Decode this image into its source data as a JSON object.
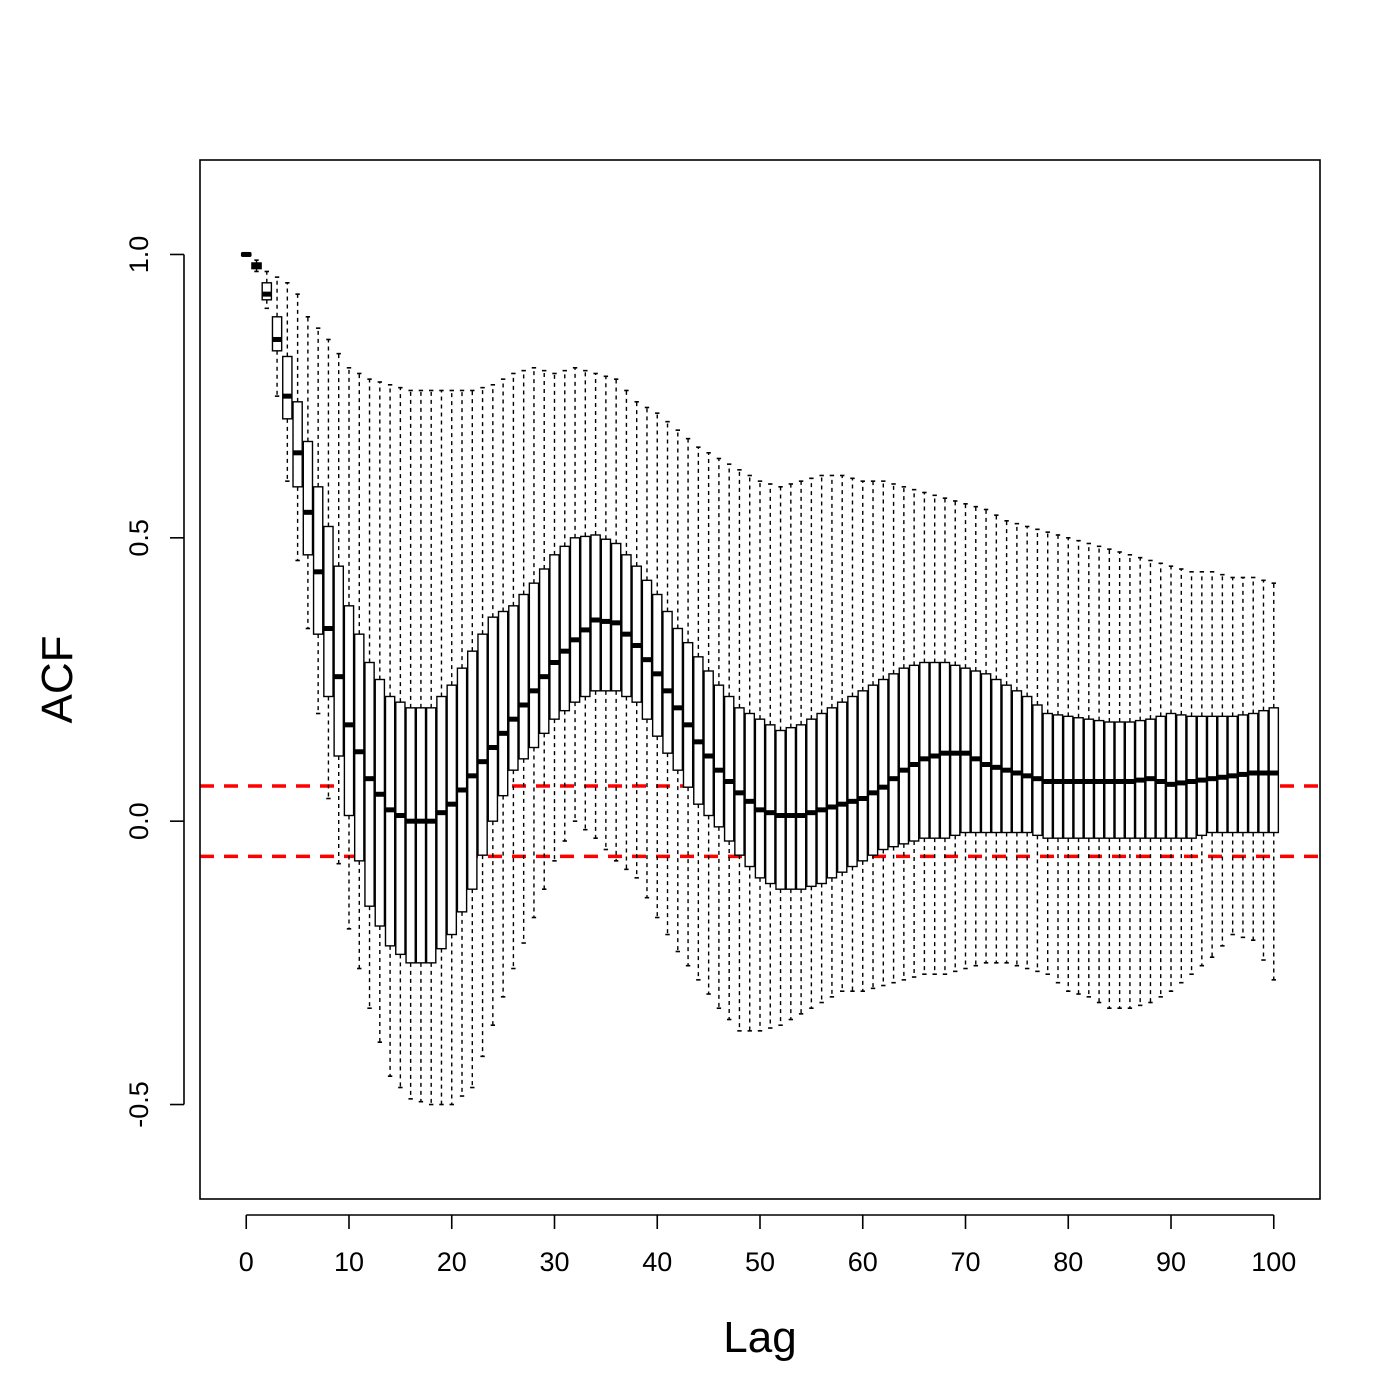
{
  "chart_data": {
    "type": "box",
    "xlabel": "Lag",
    "ylabel": "ACF",
    "xlim": [
      -4.5,
      104.5
    ],
    "ylim": [
      -0.6667,
      1.1667
    ],
    "x_ticks": [
      0,
      10,
      20,
      30,
      40,
      50,
      60,
      70,
      80,
      90,
      100
    ],
    "x_tick_labels": [
      "0",
      "10",
      "20",
      "30",
      "40",
      "50",
      "60",
      "70",
      "80",
      "90",
      "100"
    ],
    "y_ticks": [
      -0.5,
      0.0,
      0.5,
      1.0
    ],
    "y_tick_labels": [
      "-0.5",
      "0.0",
      "0.5",
      "1.0"
    ],
    "confidence_bounds": [
      0.062,
      -0.062
    ],
    "confidence_color": "#ff0000",
    "knots": {
      "lag": [
        0,
        1,
        2,
        3,
        4,
        5,
        6,
        7,
        8,
        10,
        12,
        14,
        16,
        18,
        20,
        22,
        24,
        26,
        28,
        30,
        32,
        34,
        36,
        38,
        40,
        42,
        44,
        46,
        48,
        50,
        52,
        54,
        56,
        58,
        60,
        62,
        64,
        66,
        68,
        70,
        72,
        74,
        76,
        78,
        80,
        82,
        84,
        86,
        88,
        90,
        92,
        94,
        96,
        98,
        100
      ],
      "whisker_low": [
        1.0,
        0.97,
        0.905,
        0.75,
        0.6,
        0.46,
        0.34,
        0.19,
        0.04,
        -0.19,
        -0.33,
        -0.45,
        -0.49,
        -0.5,
        -0.5,
        -0.47,
        -0.36,
        -0.26,
        -0.17,
        -0.07,
        0.0,
        -0.03,
        -0.07,
        -0.1,
        -0.17,
        -0.23,
        -0.28,
        -0.33,
        -0.37,
        -0.37,
        -0.36,
        -0.34,
        -0.32,
        -0.3,
        -0.3,
        -0.29,
        -0.28,
        -0.27,
        -0.27,
        -0.26,
        -0.25,
        -0.25,
        -0.26,
        -0.27,
        -0.3,
        -0.31,
        -0.33,
        -0.33,
        -0.32,
        -0.3,
        -0.27,
        -0.24,
        -0.2,
        -0.21,
        -0.28
      ],
      "q1": [
        0.998,
        0.975,
        0.92,
        0.83,
        0.71,
        0.59,
        0.47,
        0.33,
        0.22,
        0.01,
        -0.15,
        -0.22,
        -0.25,
        -0.25,
        -0.2,
        -0.12,
        0.0,
        0.09,
        0.13,
        0.18,
        0.21,
        0.23,
        0.23,
        0.21,
        0.15,
        0.09,
        0.03,
        -0.01,
        -0.06,
        -0.1,
        -0.12,
        -0.12,
        -0.11,
        -0.09,
        -0.07,
        -0.05,
        -0.04,
        -0.03,
        -0.03,
        -0.02,
        -0.02,
        -0.02,
        -0.02,
        -0.03,
        -0.03,
        -0.03,
        -0.03,
        -0.03,
        -0.03,
        -0.03,
        -0.03,
        -0.02,
        -0.02,
        -0.02,
        -0.02
      ],
      "median": [
        1.0,
        0.98,
        0.93,
        0.85,
        0.75,
        0.65,
        0.545,
        0.44,
        0.34,
        0.17,
        0.075,
        0.02,
        0.0,
        0.0,
        0.03,
        0.08,
        0.13,
        0.18,
        0.23,
        0.28,
        0.32,
        0.355,
        0.35,
        0.31,
        0.26,
        0.2,
        0.14,
        0.09,
        0.05,
        0.02,
        0.01,
        0.01,
        0.02,
        0.03,
        0.04,
        0.06,
        0.09,
        0.11,
        0.12,
        0.12,
        0.1,
        0.09,
        0.08,
        0.07,
        0.07,
        0.07,
        0.07,
        0.07,
        0.075,
        0.065,
        0.07,
        0.075,
        0.08,
        0.085,
        0.085
      ],
      "q3": [
        1.002,
        0.985,
        0.95,
        0.89,
        0.82,
        0.74,
        0.67,
        0.59,
        0.52,
        0.38,
        0.28,
        0.22,
        0.2,
        0.2,
        0.24,
        0.3,
        0.36,
        0.38,
        0.42,
        0.47,
        0.5,
        0.505,
        0.49,
        0.45,
        0.4,
        0.34,
        0.29,
        0.24,
        0.2,
        0.18,
        0.16,
        0.17,
        0.19,
        0.21,
        0.23,
        0.25,
        0.27,
        0.28,
        0.28,
        0.27,
        0.26,
        0.24,
        0.22,
        0.19,
        0.185,
        0.18,
        0.175,
        0.175,
        0.18,
        0.19,
        0.185,
        0.185,
        0.185,
        0.19,
        0.2
      ],
      "whisker_high": [
        1.003,
        0.99,
        0.97,
        0.96,
        0.95,
        0.93,
        0.89,
        0.87,
        0.85,
        0.8,
        0.78,
        0.77,
        0.76,
        0.76,
        0.76,
        0.76,
        0.77,
        0.79,
        0.8,
        0.79,
        0.8,
        0.79,
        0.78,
        0.74,
        0.72,
        0.69,
        0.66,
        0.64,
        0.62,
        0.6,
        0.59,
        0.6,
        0.61,
        0.61,
        0.6,
        0.6,
        0.59,
        0.58,
        0.57,
        0.56,
        0.55,
        0.53,
        0.52,
        0.51,
        0.5,
        0.49,
        0.48,
        0.47,
        0.46,
        0.45,
        0.44,
        0.44,
        0.43,
        0.43,
        0.42
      ]
    }
  }
}
